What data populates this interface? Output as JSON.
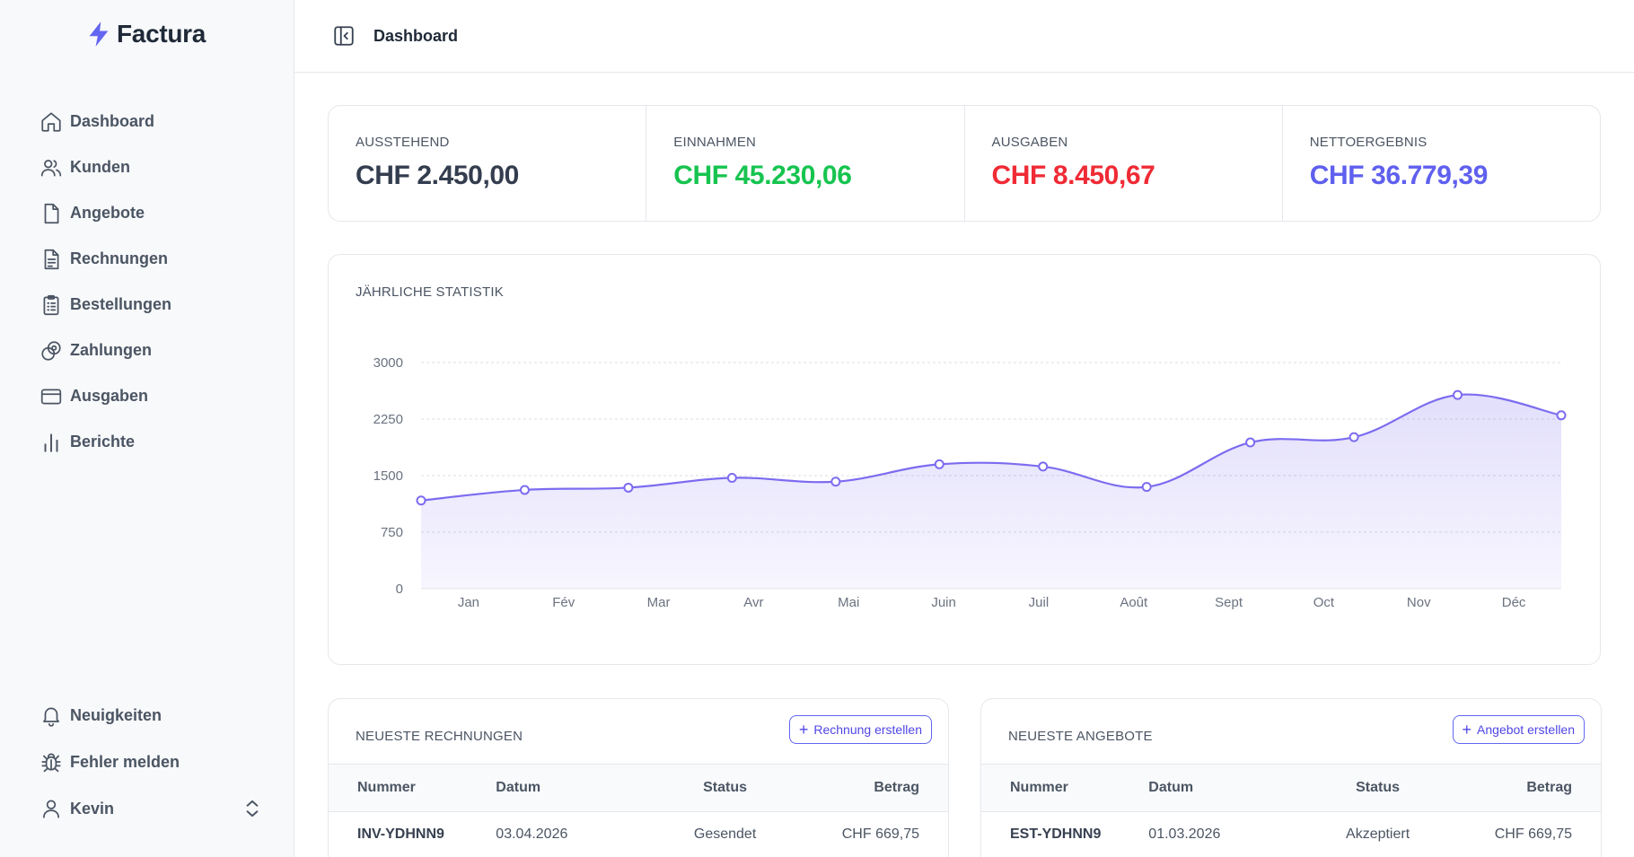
{
  "brand": {
    "name": "Factura",
    "accent": "#6366f1"
  },
  "sidebar": {
    "items": [
      {
        "label": "Dashboard",
        "icon": "home-icon"
      },
      {
        "label": "Kunden",
        "icon": "users-icon"
      },
      {
        "label": "Angebote",
        "icon": "document-icon"
      },
      {
        "label": "Rechnungen",
        "icon": "invoice-icon"
      },
      {
        "label": "Bestellungen",
        "icon": "clipboard-icon"
      },
      {
        "label": "Zahlungen",
        "icon": "coins-icon"
      },
      {
        "label": "Ausgaben",
        "icon": "credit-card-icon"
      },
      {
        "label": "Berichte",
        "icon": "bar-chart-icon"
      }
    ],
    "bottom": [
      {
        "label": "Neuigkeiten",
        "icon": "bell-icon"
      },
      {
        "label": "Fehler melden",
        "icon": "bug-icon"
      }
    ],
    "user": {
      "name": "Kevin"
    }
  },
  "header": {
    "title": "Dashboard"
  },
  "stats": [
    {
      "label": "AUSSTEHEND",
      "value": "CHF 2.450,00",
      "color": "#333d4e"
    },
    {
      "label": "EINNAHMEN",
      "value": "CHF 45.230,06",
      "color": "#16c44f"
    },
    {
      "label": "AUSGABEN",
      "value": "CHF 8.450,67",
      "color": "#ef2b35"
    },
    {
      "label": "NETTOERGEBNIS",
      "value": "CHF 36.779,39",
      "color": "#5f60ee"
    }
  ],
  "chart_data": {
    "type": "area",
    "title": "JÄHRLICHE STATISTIK",
    "categories": [
      "Jan",
      "Fév",
      "Mar",
      "Avr",
      "Mai",
      "Juin",
      "Juil",
      "Août",
      "Sept",
      "Oct",
      "Nov",
      "Déc"
    ],
    "values": [
      1170,
      1310,
      1340,
      1470,
      1420,
      1650,
      1620,
      1350,
      1940,
      2010,
      2570,
      2300
    ],
    "yticks": [
      0,
      750,
      1500,
      2250,
      3000
    ],
    "ylim": [
      0,
      3000
    ],
    "grid": true,
    "color": "#7c6cf0"
  },
  "invoices": {
    "title": "NEUESTE RECHNUNGEN",
    "button": "Rechnung erstellen",
    "columns": [
      "Nummer",
      "Datum",
      "Status",
      "Betrag"
    ],
    "rows": [
      {
        "number": "INV-YDHNN9",
        "date": "03.04.2026",
        "status": "Gesendet",
        "amount": "CHF 669,75"
      }
    ]
  },
  "quotes": {
    "title": "NEUESTE ANGEBOTE",
    "button": "Angebot erstellen",
    "columns": [
      "Nummer",
      "Datum",
      "Status",
      "Betrag"
    ],
    "rows": [
      {
        "number": "EST-YDHNN9",
        "date": "01.03.2026",
        "status": "Akzeptiert",
        "amount": "CHF 669,75"
      }
    ]
  }
}
